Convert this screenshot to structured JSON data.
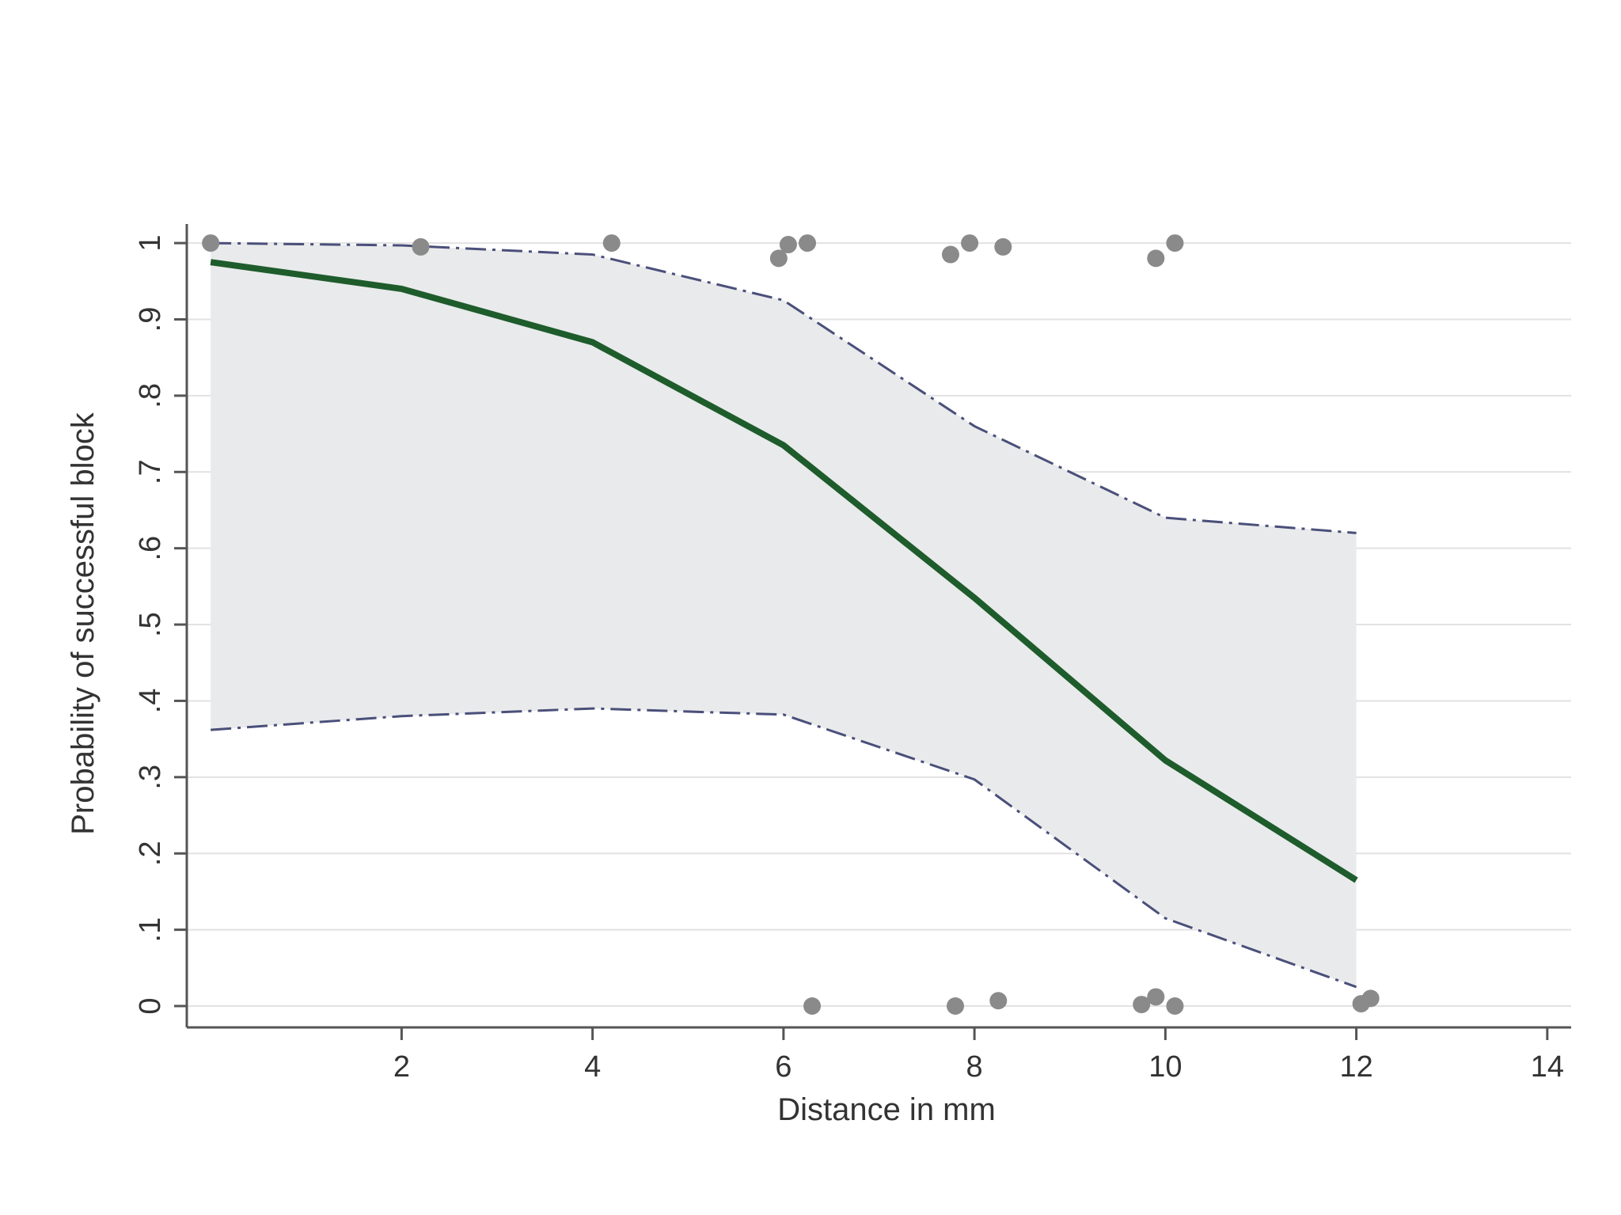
{
  "chart_data": {
    "type": "line",
    "xlabel": "Distance in mm",
    "ylabel": "Probability of successful block",
    "xlim": [
      -0.25,
      14.25
    ],
    "ylim": [
      -0.028,
      1.025
    ],
    "x_ticks": [
      2,
      4,
      6,
      8,
      10,
      12,
      14
    ],
    "x_tick_labels": [
      "2",
      "4",
      "6",
      "8",
      "10",
      "12",
      "14"
    ],
    "y_ticks": [
      0,
      0.1,
      0.2,
      0.3,
      0.4,
      0.5,
      0.6,
      0.7,
      0.8,
      0.9,
      1
    ],
    "y_tick_labels": [
      "0",
      ".1",
      ".2",
      ".3",
      ".4",
      ".5",
      ".6",
      ".7",
      ".8",
      ".9",
      "1"
    ],
    "grid": true,
    "series": [
      {
        "role": "fitted",
        "color": "#1e5c2c",
        "x": [
          0,
          2,
          4,
          6,
          8,
          10,
          12
        ],
        "y": [
          0.975,
          0.94,
          0.87,
          0.735,
          0.535,
          0.322,
          0.165
        ]
      },
      {
        "role": "upper-ci",
        "color": "#4a4f7a",
        "x": [
          0,
          2,
          4,
          6,
          8,
          10,
          12
        ],
        "y": [
          1.0,
          0.997,
          0.985,
          0.925,
          0.76,
          0.64,
          0.62
        ]
      },
      {
        "role": "lower-ci",
        "color": "#4a4f7a",
        "x": [
          0,
          2,
          4,
          6,
          8,
          10,
          12
        ],
        "y": [
          0.362,
          0.38,
          0.39,
          0.382,
          0.297,
          0.115,
          0.025
        ]
      }
    ],
    "ci_fill_color": "#e9eaeb",
    "point_color": "#8a8a8a",
    "points": [
      {
        "x": 0.0,
        "y": 1.0
      },
      {
        "x": 2.2,
        "y": 0.995
      },
      {
        "x": 4.2,
        "y": 1.0
      },
      {
        "x": 5.95,
        "y": 0.98
      },
      {
        "x": 6.05,
        "y": 0.998
      },
      {
        "x": 6.25,
        "y": 1.0
      },
      {
        "x": 7.75,
        "y": 0.985
      },
      {
        "x": 7.95,
        "y": 1.0
      },
      {
        "x": 8.3,
        "y": 0.995
      },
      {
        "x": 9.9,
        "y": 0.98
      },
      {
        "x": 10.1,
        "y": 1.0
      },
      {
        "x": 6.3,
        "y": 0.0
      },
      {
        "x": 7.8,
        "y": 0.0
      },
      {
        "x": 8.25,
        "y": 0.007
      },
      {
        "x": 9.75,
        "y": 0.002
      },
      {
        "x": 9.9,
        "y": 0.012
      },
      {
        "x": 10.1,
        "y": 0.0
      },
      {
        "x": 12.05,
        "y": 0.003
      },
      {
        "x": 12.15,
        "y": 0.01
      }
    ]
  }
}
